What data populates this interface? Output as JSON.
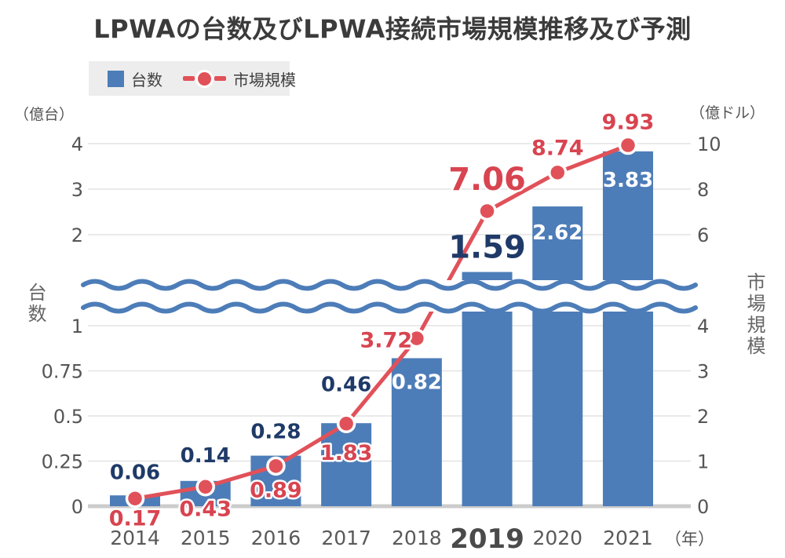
{
  "title": "LPWAの台数及びLPWA接続市場規模推移及び予測",
  "legend": {
    "bars_label": "台数",
    "line_label": "市場規模"
  },
  "axes": {
    "left_unit": "（億台）",
    "right_unit": "（億ドル）",
    "x_unit": "（年）",
    "left_title": "台数",
    "right_title": "市場規模"
  },
  "chart_data": {
    "type": "bar+line combo, dual y-axis with wavy axis break",
    "categories": [
      "2014",
      "2015",
      "2016",
      "2017",
      "2018",
      "2019",
      "2020",
      "2021"
    ],
    "highlight_category": "2019",
    "series": [
      {
        "name": "台数",
        "type": "bar",
        "axis": "left",
        "unit": "億台",
        "color": "#4d7db8",
        "values": [
          0.06,
          0.14,
          0.28,
          0.46,
          0.82,
          1.59,
          2.62,
          3.83
        ]
      },
      {
        "name": "市場規模",
        "type": "line",
        "axis": "right",
        "unit": "億ドル",
        "color": "#e15159",
        "label_color": "#d84450",
        "values": [
          0.17,
          0.43,
          0.89,
          1.83,
          3.72,
          7.06,
          8.74,
          9.93
        ]
      }
    ],
    "left_axis": {
      "unit": "（億台）",
      "ticks_below_break": [
        0,
        0.25,
        0.5,
        0.75,
        1
      ],
      "ticks_above_break": [
        2,
        3,
        4
      ]
    },
    "right_axis": {
      "unit": "（億ドル）",
      "ticks_below_break": [
        0,
        1,
        2,
        3,
        4
      ],
      "ticks_above_break": [
        6,
        8,
        10
      ]
    },
    "grid_rows": [
      {
        "left": "4",
        "right": "10",
        "value": 4
      },
      {
        "left": "3",
        "right": "8",
        "value": 3
      },
      {
        "left": "2",
        "right": "6",
        "value": 2
      },
      {
        "left": "1",
        "right": "4",
        "value": 1
      },
      {
        "left": "0.75",
        "right": "3",
        "value": 0.75
      },
      {
        "left": "0.5",
        "right": "2",
        "value": 0.5
      },
      {
        "left": "0.25",
        "right": "1",
        "value": 0.25
      },
      {
        "left": "0",
        "right": "0",
        "value": 0
      }
    ],
    "axis_break": {
      "style": "double-wave",
      "between_left_values": [
        1,
        2
      ],
      "between_right_values": [
        4,
        6
      ]
    },
    "label_layout": {
      "devices_style": [
        "navy",
        "navy",
        "navy",
        "navy",
        "white",
        "navy-big",
        "white",
        "white"
      ],
      "devices_dy": [
        -30,
        -33,
        -31,
        -50,
        30,
        -32,
        33,
        36
      ],
      "market_size": [
        "reg",
        "reg",
        "reg",
        "reg",
        "reg",
        "big",
        "reg",
        "reg"
      ],
      "market_dx": [
        0,
        0,
        0,
        0,
        -39,
        0,
        0,
        0
      ],
      "market_dy": [
        25,
        28,
        30,
        37,
        2,
        -41,
        -32,
        -30
      ]
    },
    "colors": {
      "navy_label": "#1f3a68",
      "grid": "#e3e3e3",
      "baseline": "#cccccc",
      "tick_text": "#555555",
      "year_text": "#595959",
      "year_highlight": "#4a4a4a",
      "legend_bg": "#ededed"
    },
    "legend_position": "top-left",
    "grid": true
  }
}
